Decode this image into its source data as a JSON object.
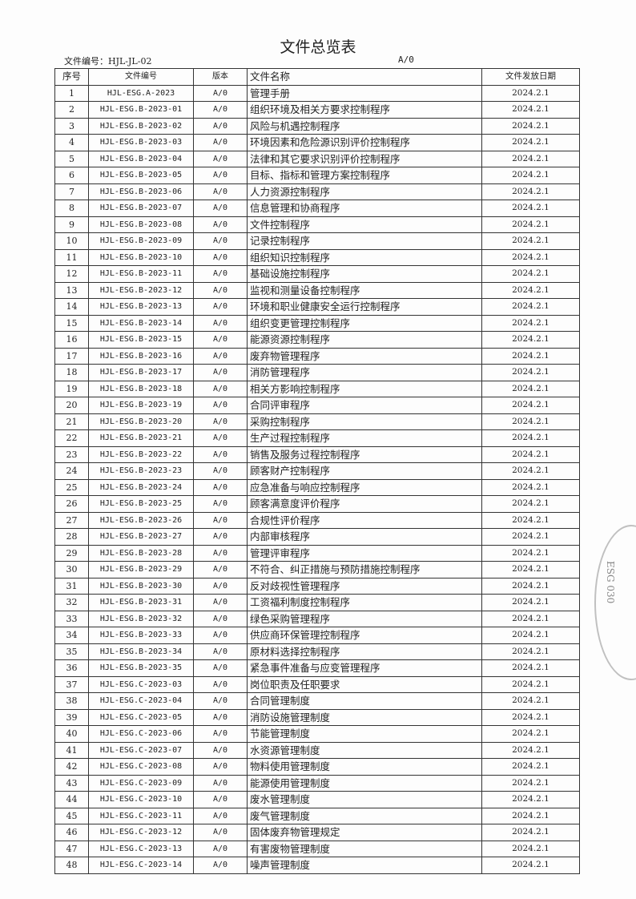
{
  "title": "文件总览表",
  "doc_number": "文件编号：HJL-JL-02",
  "version": "A/0",
  "headers": [
    "序号",
    "文件编号",
    "版本",
    "文件名称",
    "文件发放日期"
  ],
  "stamp_text": "ESG 030",
  "rows": [
    [
      "1",
      "HJL-ESG.A-2023",
      "A/0",
      "管理手册",
      "2024.2.1"
    ],
    [
      "2",
      "HJL-ESG.B-2023-01",
      "A/0",
      "组织环境及相关方要求控制程序",
      "2024.2.1"
    ],
    [
      "3",
      "HJL-ESG.B-2023-02",
      "A/0",
      "风险与机遇控制程序",
      "2024.2.1"
    ],
    [
      "4",
      "HJL-ESG.B-2023-03",
      "A/0",
      "环境因素和危险源识别评价控制程序",
      "2024.2.1"
    ],
    [
      "5",
      "HJL-ESG.B-2023-04",
      "A/0",
      "法律和其它要求识别评价控制程序",
      "2024.2.1"
    ],
    [
      "6",
      "HJL-ESG.B-2023-05",
      "A/0",
      "目标、指标和管理方案控制程序",
      "2024.2.1"
    ],
    [
      "7",
      "HJL-ESG.B-2023-06",
      "A/0",
      "人力资源控制程序",
      "2024.2.1"
    ],
    [
      "8",
      "HJL-ESG.B-2023-07",
      "A/0",
      "信息管理和协商程序",
      "2024.2.1"
    ],
    [
      "9",
      "HJL-ESG.B-2023-08",
      "A/0",
      "文件控制程序",
      "2024.2.1"
    ],
    [
      "10",
      "HJL-ESG.B-2023-09",
      "A/0",
      "记录控制程序",
      "2024.2.1"
    ],
    [
      "11",
      "HJL-ESG.B-2023-10",
      "A/0",
      "组织知识控制程序",
      "2024.2.1"
    ],
    [
      "12",
      "HJL-ESG.B-2023-11",
      "A/0",
      "基础设施控制程序",
      "2024.2.1"
    ],
    [
      "13",
      "HJL-ESG.B-2023-12",
      "A/0",
      "监视和测量设备控制程序",
      "2024.2.1"
    ],
    [
      "14",
      "HJL-ESG.B-2023-13",
      "A/0",
      "环境和职业健康安全运行控制程序",
      "2024.2.1"
    ],
    [
      "15",
      "HJL-ESG.B-2023-14",
      "A/0",
      "组织变更管理控制程序",
      "2024.2.1"
    ],
    [
      "16",
      "HJL-ESG.B-2023-15",
      "A/0",
      "能源资源控制程序",
      "2024.2.1"
    ],
    [
      "17",
      "HJL-ESG.B-2023-16",
      "A/0",
      "废弃物管理程序",
      "2024.2.1"
    ],
    [
      "18",
      "HJL-ESG.B-2023-17",
      "A/0",
      "消防管理程序",
      "2024.2.1"
    ],
    [
      "19",
      "HJL-ESG.B-2023-18",
      "A/0",
      "相关方影响控制程序",
      "2024.2.1"
    ],
    [
      "20",
      "HJL-ESG.B-2023-19",
      "A/0",
      "合同评审程序",
      "2024.2.1"
    ],
    [
      "21",
      "HJL-ESG.B-2023-20",
      "A/0",
      "采购控制程序",
      "2024.2.1"
    ],
    [
      "22",
      "HJL-ESG.B-2023-21",
      "A/0",
      "生产过程控制程序",
      "2024.2.1"
    ],
    [
      "23",
      "HJL-ESG.B-2023-22",
      "A/0",
      "销售及服务过程控制程序",
      "2024.2.1"
    ],
    [
      "24",
      "HJL-ESG.B-2023-23",
      "A/0",
      "顾客财产控制程序",
      "2024.2.1"
    ],
    [
      "25",
      "HJL-ESG.B-2023-24",
      "A/0",
      "应急准备与响应控制程序",
      "2024.2.1"
    ],
    [
      "26",
      "HJL-ESG.B-2023-25",
      "A/0",
      "顾客满意度评价程序",
      "2024.2.1"
    ],
    [
      "27",
      "HJL-ESG.B-2023-26",
      "A/0",
      "合规性评价程序",
      "2024.2.1"
    ],
    [
      "28",
      "HJL-ESG.B-2023-27",
      "A/0",
      "内部审核程序",
      "2024.2.1"
    ],
    [
      "29",
      "HJL-ESG.B-2023-28",
      "A/0",
      "管理评审程序",
      "2024.2.1"
    ],
    [
      "30",
      "HJL-ESG.B-2023-29",
      "A/0",
      "不符合、纠正措施与预防措施控制程序",
      "2024.2.1"
    ],
    [
      "31",
      "HJL-ESG.B-2023-30",
      "A/0",
      "反对歧视性管理程序",
      "2024.2.1"
    ],
    [
      "32",
      "HJL-ESG.B-2023-31",
      "A/0",
      "工资福利制度控制程序",
      "2024.2.1"
    ],
    [
      "33",
      "HJL-ESG.B-2023-32",
      "A/0",
      "绿色采购管理程序",
      "2024.2.1"
    ],
    [
      "34",
      "HJL-ESG.B-2023-33",
      "A/0",
      "供应商环保管理控制程序",
      "2024.2.1"
    ],
    [
      "35",
      "HJL-ESG.B-2023-34",
      "A/0",
      "原材料选择控制程序",
      "2024.2.1"
    ],
    [
      "36",
      "HJL-ESG.B-2023-35",
      "A/0",
      "紧急事件准备与应变管理程序",
      "2024.2.1"
    ],
    [
      "37",
      "HJL-ESG.C-2023-03",
      "A/0",
      "岗位职责及任职要求",
      "2024.2.1"
    ],
    [
      "38",
      "HJL-ESG.C-2023-04",
      "A/0",
      "合同管理制度",
      "2024.2.1"
    ],
    [
      "39",
      "HJL-ESG.C-2023-05",
      "A/0",
      "消防设施管理制度",
      "2024.2.1"
    ],
    [
      "40",
      "HJL-ESG.C-2023-06",
      "A/0",
      "节能管理制度",
      "2024.2.1"
    ],
    [
      "41",
      "HJL-ESG.C-2023-07",
      "A/0",
      "水资源管理制度",
      "2024.2.1"
    ],
    [
      "42",
      "HJL-ESG.C-2023-08",
      "A/0",
      "物料使用管理制度",
      "2024.2.1"
    ],
    [
      "43",
      "HJL-ESG.C-2023-09",
      "A/0",
      "能源使用管理制度",
      "2024.2.1"
    ],
    [
      "44",
      "HJL-ESG.C-2023-10",
      "A/0",
      "废水管理制度",
      "2024.2.1"
    ],
    [
      "45",
      "HJL-ESG.C-2023-11",
      "A/0",
      "废气管理制度",
      "2024.2.1"
    ],
    [
      "46",
      "HJL-ESG.C-2023-12",
      "A/0",
      "固体废弃物管理规定",
      "2024.2.1"
    ],
    [
      "47",
      "HJL-ESG.C-2023-13",
      "A/0",
      "有害废物管理制度",
      "2024.2.1"
    ],
    [
      "48",
      "HJL-ESG.C-2023-14",
      "A/0",
      "噪声管理制度",
      "2024.2.1"
    ]
  ]
}
